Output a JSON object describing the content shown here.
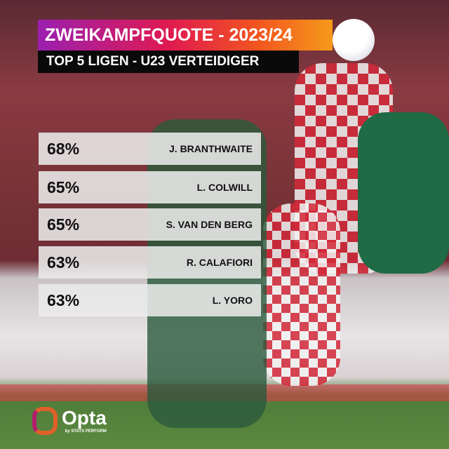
{
  "title": "ZWEIKAMPFQUOTE - 2023/24",
  "subtitle": "TOP 5 LIGEN - U23 VERTEIDIGER",
  "rows": [
    {
      "pct": "68%",
      "name": "J. BRANTHWAITE"
    },
    {
      "pct": "65%",
      "name": "L. COLWILL"
    },
    {
      "pct": "65%",
      "name": "S. VAN DEN BERG"
    },
    {
      "pct": "63%",
      "name": "R. CALAFIORI"
    },
    {
      "pct": "63%",
      "name": "L. YORO"
    }
  ],
  "logo": {
    "brand": "Opta",
    "tagline": "by STATS PERFORM"
  },
  "colors": {
    "title_gradient": [
      "#9b1fb0",
      "#e01a4f",
      "#f59a1a"
    ],
    "subtitle_bg": "#0a0a0a"
  }
}
